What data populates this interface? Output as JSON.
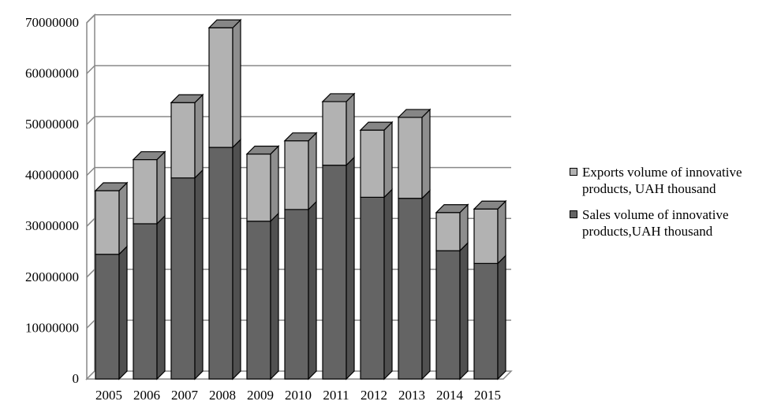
{
  "chart_data": {
    "type": "bar",
    "stacked": true,
    "three_d": true,
    "categories": [
      "2005",
      "2006",
      "2007",
      "2008",
      "2009",
      "2010",
      "2011",
      "2012",
      "2013",
      "2014",
      "2015"
    ],
    "series": [
      {
        "name": "Sales volume of innovative products,UAH thousand",
        "values": [
          24500000,
          30500000,
          39500000,
          45500000,
          31000000,
          33300000,
          42000000,
          35700000,
          35500000,
          25200000,
          22700000
        ],
        "color": "#646464"
      },
      {
        "name": "Exports volume of innovative products, UAH thousand",
        "values": [
          12500000,
          12600000,
          14800000,
          23500000,
          13200000,
          13500000,
          12500000,
          13200000,
          15900000,
          7500000,
          10700000
        ],
        "color": "#b2b2b2"
      }
    ],
    "y_ticks": [
      "0",
      "10000000",
      "20000000",
      "30000000",
      "40000000",
      "50000000",
      "60000000",
      "70000000"
    ],
    "ylim": [
      0,
      70000000
    ],
    "grid": true,
    "legend_position": "right"
  }
}
